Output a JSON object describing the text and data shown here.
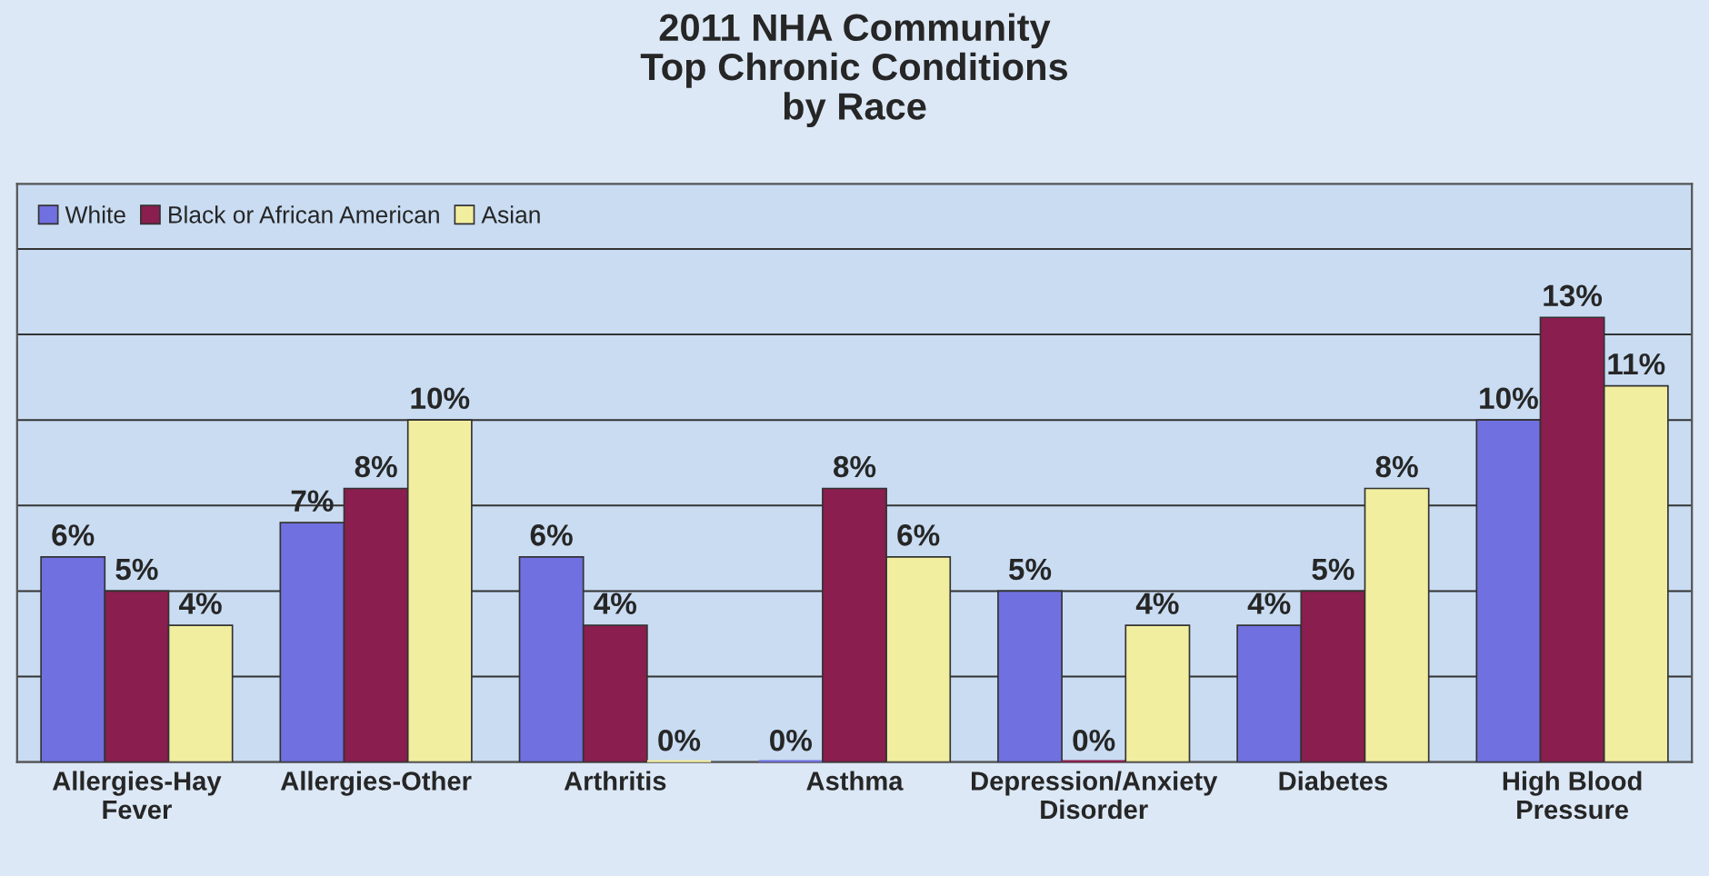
{
  "chart_data": {
    "type": "bar",
    "title": "2011 NHA Community\nTop Chronic Conditions\nby Race",
    "categories": [
      "Allergies-Hay\nFever",
      "Allergies-Other",
      "Arthritis",
      "Asthma",
      "Depression/Anxiety\nDisorder",
      "Diabetes",
      "High Blood\nPressure"
    ],
    "series": [
      {
        "name": "White",
        "color": "#7070e0",
        "values": [
          6,
          7,
          6,
          0,
          5,
          4,
          10
        ],
        "value_labels": [
          "6%",
          "7%",
          "6%",
          "0%",
          "5%",
          "4%",
          "10%"
        ]
      },
      {
        "name": "Black or African American",
        "color": "#8a1e4e",
        "values": [
          5,
          8,
          4,
          8,
          0,
          5,
          13
        ],
        "value_labels": [
          "5%",
          "8%",
          "4%",
          "8%",
          "0%",
          "5%",
          "13%"
        ]
      },
      {
        "name": "Asian",
        "color": "#f2eea0",
        "values": [
          4,
          10,
          0,
          6,
          4,
          8,
          11
        ],
        "value_labels": [
          "4%",
          "10%",
          "0%",
          "6%",
          "4%",
          "8%",
          "11%"
        ]
      }
    ],
    "tick_labels": "x",
    "grid": "y",
    "legend": "top left"
  }
}
